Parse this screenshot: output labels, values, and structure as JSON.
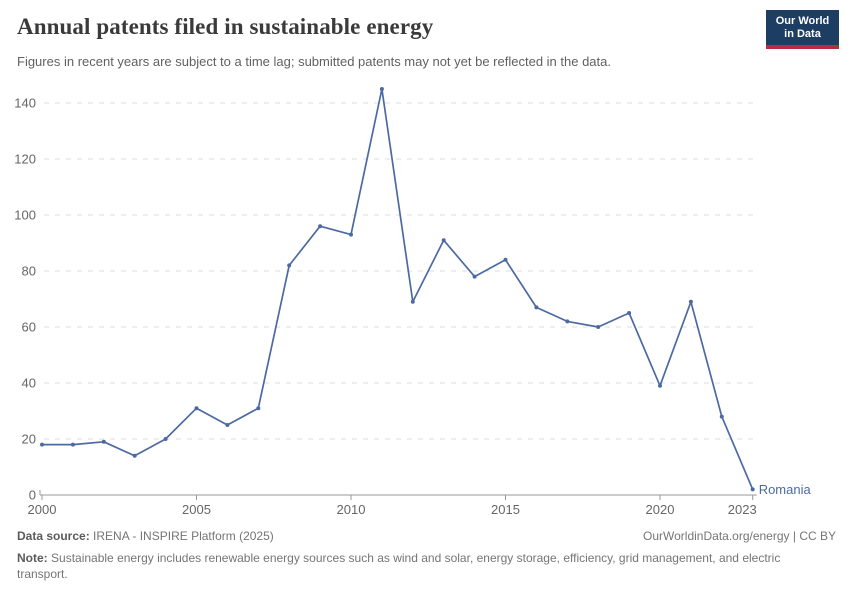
{
  "header": {
    "title": "Annual patents filed in sustainable energy",
    "subtitle": "Figures in recent years are subject to a time lag; submitted patents may not yet be reflected in the data."
  },
  "logo": {
    "line1": "Our World",
    "line2": "in Data",
    "bg_color": "#1d3d63",
    "accent_color": "#b82c3c"
  },
  "chart_data": {
    "type": "line",
    "title": "Annual patents filed in sustainable energy",
    "x": [
      2000,
      2001,
      2002,
      2003,
      2004,
      2005,
      2006,
      2007,
      2008,
      2009,
      2010,
      2011,
      2012,
      2013,
      2014,
      2015,
      2016,
      2017,
      2018,
      2019,
      2020,
      2021,
      2022,
      2023
    ],
    "series": [
      {
        "name": "Romania",
        "color": "#4C6AA2",
        "values": [
          18,
          18,
          19,
          14,
          20,
          31,
          25,
          31,
          82,
          96,
          93,
          145,
          69,
          91,
          78,
          84,
          67,
          62,
          60,
          65,
          39,
          69,
          28,
          2
        ]
      }
    ],
    "end_label": "Romania",
    "xticks": [
      2000,
      2005,
      2010,
      2015,
      2020,
      2023
    ],
    "yticks": [
      0,
      20,
      40,
      60,
      80,
      100,
      120,
      140
    ],
    "ylim": [
      0,
      150
    ],
    "xlabel": "",
    "ylabel": "",
    "grid": "horizontal-dashed",
    "legend": "end-of-line-label",
    "axis_color": "#999999",
    "gridline_color": "#dddddd",
    "tick_label_color": "#666666"
  },
  "footer": {
    "source_label": "Data source:",
    "source_value": "IRENA - INSPIRE Platform (2025)",
    "link": "OurWorldinData.org/energy | CC BY",
    "note_label": "Note:",
    "note_value": "Sustainable energy includes renewable energy sources such as wind and solar, energy storage, efficiency, grid management, and electric transport."
  }
}
